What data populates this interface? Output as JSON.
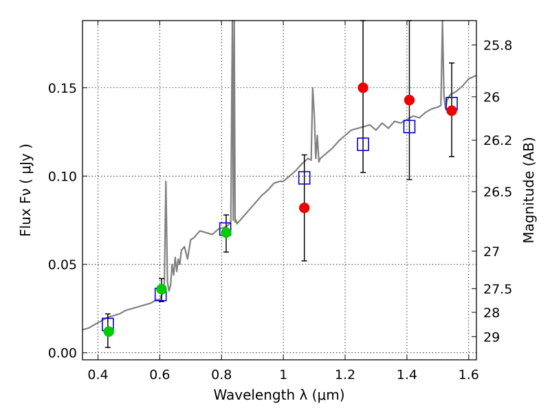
{
  "chart_data": {
    "type": "scatter",
    "xlabel": "Wavelength  λ (μm)",
    "ylabel": "Flux  Fν  ( μJy )",
    "y2label": "Magnitude (AB)",
    "xlim": [
      0.35,
      1.625
    ],
    "ylim": [
      -0.004,
      0.188
    ],
    "grid": true,
    "x_ticks": [
      0.4,
      0.6,
      0.8,
      1.0,
      1.2,
      1.4,
      1.6
    ],
    "x_tick_labels": [
      "0.4",
      "0.6",
      "0.8",
      "1",
      "1.2",
      "1.4",
      "1.6"
    ],
    "y_ticks": [
      0.0,
      0.05,
      0.1,
      0.15
    ],
    "y_tick_labels": [
      "0.00",
      "0.05",
      "0.10",
      "0.15"
    ],
    "y2_ticks": [
      {
        "flux": 0.1742,
        "label": "25.8"
      },
      {
        "flux": 0.1449,
        "label": "26"
      },
      {
        "flux": 0.1203,
        "label": "26.2"
      },
      {
        "flux": 0.0912,
        "label": "26.5"
      },
      {
        "flux": 0.0575,
        "label": "27"
      },
      {
        "flux": 0.0363,
        "label": "27.5"
      },
      {
        "flux": 0.0229,
        "label": "28"
      },
      {
        "flux": 0.0091,
        "label": "29"
      }
    ],
    "series": [
      {
        "marker": "line",
        "color": "#808080",
        "x": [
          0.35,
          0.37,
          0.39,
          0.41,
          0.43,
          0.45,
          0.47,
          0.49,
          0.51,
          0.53,
          0.55,
          0.57,
          0.59,
          0.6,
          0.61,
          0.615,
          0.62,
          0.625,
          0.63,
          0.635,
          0.64,
          0.645,
          0.65,
          0.655,
          0.66,
          0.665,
          0.67,
          0.68,
          0.69,
          0.7,
          0.71,
          0.72,
          0.73,
          0.75,
          0.77,
          0.79,
          0.81,
          0.82,
          0.83,
          0.835,
          0.838,
          0.841,
          0.844,
          0.847,
          0.85,
          0.87,
          0.89,
          0.91,
          0.93,
          0.95,
          0.97,
          0.99,
          1.0,
          1.02,
          1.04,
          1.06,
          1.08,
          1.09,
          1.095,
          1.1,
          1.105,
          1.11,
          1.115,
          1.12,
          1.14,
          1.16,
          1.18,
          1.2,
          1.22,
          1.24,
          1.26,
          1.28,
          1.3,
          1.32,
          1.34,
          1.36,
          1.38,
          1.4,
          1.42,
          1.44,
          1.46,
          1.48,
          1.5,
          1.51,
          1.515,
          1.52,
          1.525,
          1.53,
          1.54,
          1.56,
          1.58,
          1.6,
          1.625
        ],
        "y": [
          0.013,
          0.014,
          0.016,
          0.018,
          0.02,
          0.021,
          0.022,
          0.024,
          0.025,
          0.026,
          0.027,
          0.028,
          0.03,
          0.03,
          0.034,
          0.04,
          0.097,
          0.04,
          0.035,
          0.038,
          0.05,
          0.044,
          0.054,
          0.046,
          0.053,
          0.05,
          0.058,
          0.06,
          0.053,
          0.064,
          0.065,
          0.067,
          0.069,
          0.068,
          0.067,
          0.07,
          0.071,
          0.072,
          0.074,
          0.188,
          0.075,
          0.188,
          0.074,
          0.075,
          0.073,
          0.077,
          0.081,
          0.085,
          0.089,
          0.092,
          0.096,
          0.097,
          0.097,
          0.1,
          0.103,
          0.107,
          0.11,
          0.109,
          0.15,
          0.135,
          0.11,
          0.123,
          0.108,
          0.11,
          0.113,
          0.116,
          0.12,
          0.123,
          0.126,
          0.127,
          0.128,
          0.129,
          0.126,
          0.13,
          0.127,
          0.131,
          0.13,
          0.132,
          0.134,
          0.133,
          0.136,
          0.138,
          0.139,
          0.14,
          0.188,
          0.145,
          0.138,
          0.143,
          0.146,
          0.148,
          0.151,
          0.155,
          0.157
        ]
      },
      {
        "marker": "open-square",
        "color": "#0000cc",
        "x": [
          0.432,
          0.603,
          0.812,
          1.068,
          1.258,
          1.408,
          1.545
        ],
        "y": [
          0.016,
          0.033,
          0.07,
          0.099,
          0.118,
          0.128,
          0.141
        ]
      },
      {
        "marker": "circle",
        "color": "#00cc00",
        "x": [
          0.435,
          0.606,
          0.815
        ],
        "y": [
          0.012,
          0.036,
          0.068
        ]
      },
      {
        "marker": "circle",
        "color": "#ee0000",
        "x": [
          1.068,
          1.258,
          1.408,
          1.545
        ],
        "y": [
          0.082,
          0.15,
          0.143,
          0.137
        ]
      }
    ],
    "error_bars": [
      {
        "x": 0.432,
        "low": 0.003,
        "high": 0.022
      },
      {
        "x": 0.606,
        "low": 0.029,
        "high": 0.042
      },
      {
        "x": 0.815,
        "low": 0.057,
        "high": 0.078
      },
      {
        "x": 1.068,
        "low": 0.052,
        "high": 0.112
      },
      {
        "x": 1.258,
        "low": 0.102,
        "high": 0.188
      },
      {
        "x": 1.408,
        "low": 0.098,
        "high": 0.188
      },
      {
        "x": 1.545,
        "low": 0.111,
        "high": 0.164
      }
    ]
  }
}
